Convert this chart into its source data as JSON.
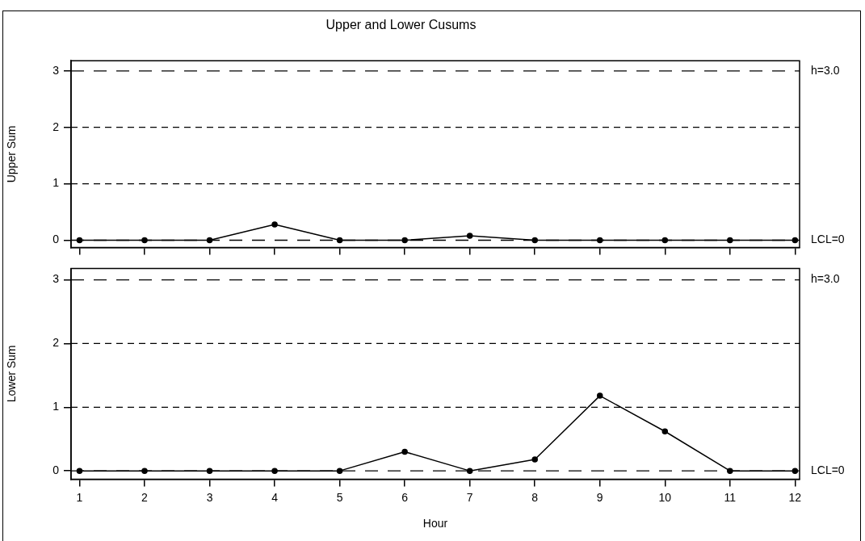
{
  "chart_data": [
    {
      "type": "line",
      "title": "Upper and Lower Cusums",
      "ylabel": "Upper Sum",
      "x": [
        1,
        2,
        3,
        4,
        5,
        6,
        7,
        8,
        9,
        10,
        11,
        12
      ],
      "xlim": [
        0.87,
        12.07
      ],
      "xticks": [
        1,
        2,
        3,
        4,
        5,
        6,
        7,
        8,
        9,
        10,
        11,
        12
      ],
      "ylim": [
        -0.13,
        3.18
      ],
      "yticks": [
        0,
        1,
        2,
        3
      ],
      "tick_labels": "y",
      "marker": "circle",
      "line_style": "solid",
      "series": [
        {
          "color": "#000000",
          "values": [
            0,
            0,
            0,
            0.28,
            0,
            0,
            0.08,
            0,
            0,
            0,
            0,
            0
          ]
        }
      ],
      "ref_lines": [
        {
          "axis": "y",
          "value": 3,
          "label": "h=3.0",
          "color": "#000000",
          "line_style": "dashed"
        },
        {
          "axis": "y",
          "value": 2,
          "color": "#000000",
          "line_style": "dashed"
        },
        {
          "axis": "y",
          "value": 1,
          "color": "#000000",
          "line_style": "dashed"
        },
        {
          "axis": "y",
          "value": 0,
          "label": "LCL=0",
          "color": "#000000",
          "line_style": "dashed"
        }
      ]
    },
    {
      "type": "line",
      "xlabel": "Hour",
      "ylabel": "Lower Sum",
      "x": [
        1,
        2,
        3,
        4,
        5,
        6,
        7,
        8,
        9,
        10,
        11,
        12
      ],
      "xlim": [
        0.87,
        12.07
      ],
      "xticks": [
        1,
        2,
        3,
        4,
        5,
        6,
        7,
        8,
        9,
        10,
        11,
        12
      ],
      "ylim": [
        -0.13,
        3.18
      ],
      "yticks": [
        0,
        1,
        2,
        3
      ],
      "marker": "circle",
      "line_style": "solid",
      "series": [
        {
          "color": "#000000",
          "values": [
            0,
            0,
            0,
            0,
            0,
            0.3,
            0,
            0.18,
            1.18,
            0.62,
            0,
            0
          ]
        }
      ],
      "ref_lines": [
        {
          "axis": "y",
          "value": 3,
          "label": "h=3.0",
          "color": "#000000",
          "line_style": "dashed"
        },
        {
          "axis": "y",
          "value": 2,
          "color": "#000000",
          "line_style": "dashed"
        },
        {
          "axis": "y",
          "value": 1,
          "color": "#000000",
          "line_style": "dashed"
        },
        {
          "axis": "y",
          "value": 0,
          "label": "LCL=0",
          "color": "#000000",
          "line_style": "dashed"
        }
      ]
    }
  ]
}
